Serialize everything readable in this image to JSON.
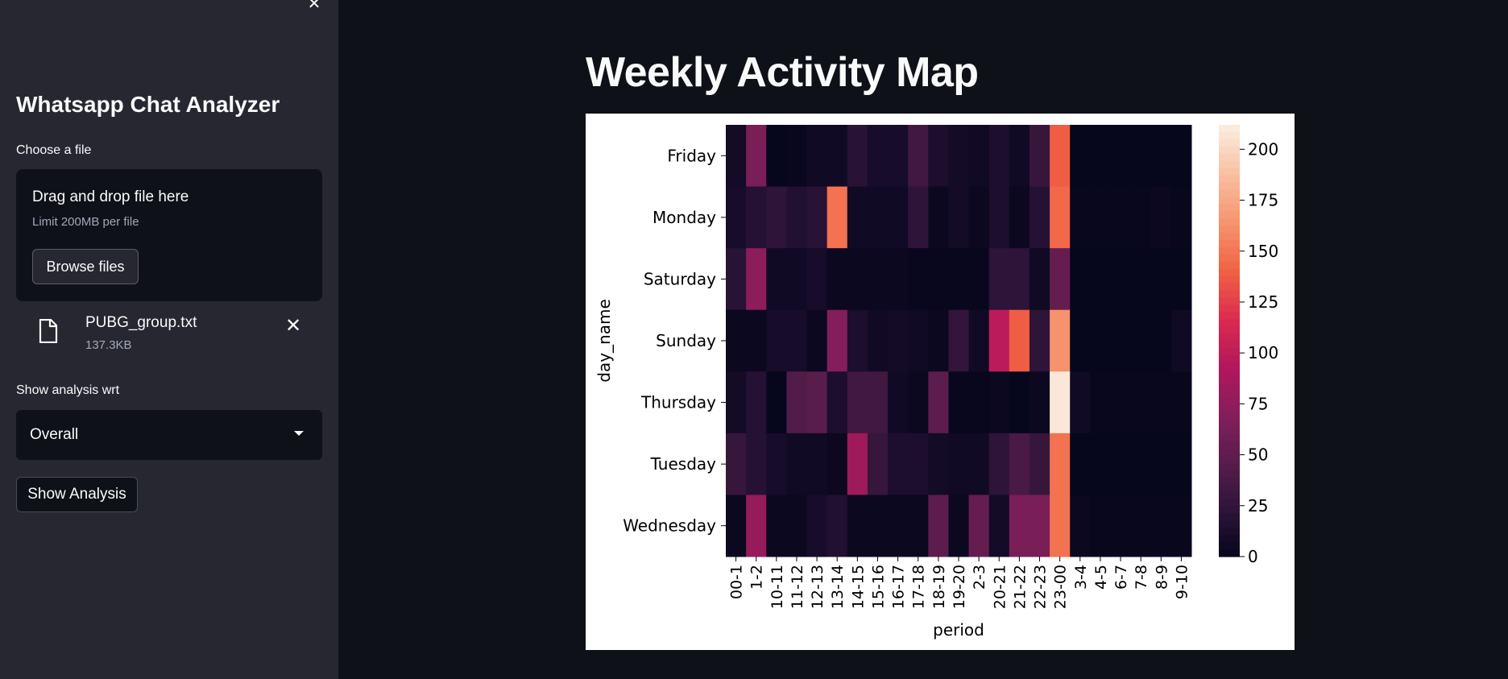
{
  "sidebar": {
    "close_icon": "close-icon",
    "title": "Whatsapp Chat Analyzer",
    "file_label": "Choose a file",
    "uploader": {
      "drag_text": "Drag and drop file here",
      "limit_text": "Limit 200MB per file",
      "browse_label": "Browse files"
    },
    "uploaded_file": {
      "name": "PUBG_group.txt",
      "size": "137.3KB",
      "icon": "file-icon",
      "remove_icon": "close-icon"
    },
    "analysis_label": "Show analysis wrt",
    "analysis_select": {
      "value": "Overall"
    },
    "show_button": "Show Analysis"
  },
  "main": {
    "title": "Weekly Activity Map"
  },
  "chart_data": {
    "type": "heatmap",
    "xlabel": "period",
    "ylabel": "day_name",
    "x": [
      "00-1",
      "1-2",
      "10-11",
      "11-12",
      "12-13",
      "13-14",
      "14-15",
      "15-16",
      "16-17",
      "17-18",
      "18-19",
      "19-20",
      "2-3",
      "20-21",
      "21-22",
      "22-23",
      "23-00",
      "3-4",
      "4-5",
      "6-7",
      "7-8",
      "8-9",
      "9-10"
    ],
    "y": [
      "Friday",
      "Monday",
      "Saturday",
      "Sunday",
      "Thursday",
      "Tuesday",
      "Wednesday"
    ],
    "values": [
      [
        10,
        65,
        2,
        3,
        8,
        8,
        22,
        12,
        12,
        35,
        15,
        10,
        8,
        15,
        8,
        30,
        140,
        2,
        2,
        2,
        2,
        2,
        2
      ],
      [
        12,
        20,
        25,
        18,
        22,
        150,
        8,
        8,
        8,
        25,
        5,
        10,
        5,
        15,
        5,
        20,
        145,
        3,
        3,
        3,
        3,
        5,
        3
      ],
      [
        22,
        75,
        8,
        8,
        12,
        5,
        5,
        5,
        5,
        3,
        3,
        3,
        3,
        25,
        25,
        8,
        55,
        2,
        2,
        2,
        2,
        2,
        2
      ],
      [
        5,
        5,
        12,
        12,
        5,
        70,
        15,
        8,
        10,
        8,
        5,
        28,
        8,
        100,
        140,
        25,
        165,
        2,
        2,
        2,
        2,
        2,
        8
      ],
      [
        10,
        20,
        2,
        45,
        48,
        15,
        35,
        35,
        8,
        5,
        50,
        3,
        3,
        5,
        2,
        5,
        210,
        8,
        3,
        3,
        3,
        3,
        3
      ],
      [
        30,
        20,
        12,
        8,
        8,
        5,
        85,
        30,
        15,
        15,
        10,
        8,
        8,
        25,
        40,
        30,
        150,
        2,
        2,
        2,
        2,
        2,
        2
      ],
      [
        5,
        80,
        5,
        5,
        12,
        18,
        5,
        5,
        5,
        5,
        50,
        5,
        55,
        10,
        65,
        65,
        150,
        5,
        3,
        3,
        3,
        3,
        3
      ]
    ],
    "colorbar": {
      "ticks": [
        0,
        25,
        50,
        75,
        100,
        125,
        150,
        175,
        200
      ],
      "range": [
        0,
        212
      ]
    },
    "colorscale": [
      "#03051a",
      "#2b1337",
      "#561d4a",
      "#841e5a",
      "#b1175c",
      "#db2a4f",
      "#f06043",
      "#f6926d",
      "#f9bd9f",
      "#faebdd"
    ]
  }
}
